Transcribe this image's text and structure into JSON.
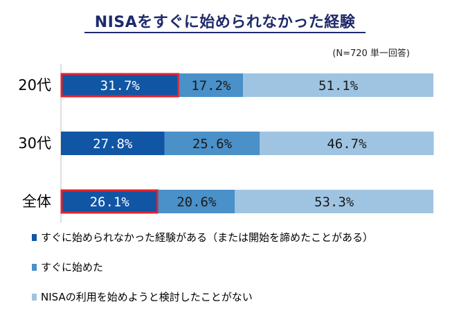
{
  "title": "NISAをすぐに始められなかった経験",
  "note": "(N=720 単一回答)",
  "colors": {
    "series1": "#1155a5",
    "series2": "#4a90c9",
    "series3": "#9fc4e2",
    "highlight": "#e8202a",
    "title": "#1f2a6b"
  },
  "chart_data": {
    "type": "bar",
    "orientation": "horizontal",
    "stacked": true,
    "categories": [
      "20代",
      "30代",
      "全体"
    ],
    "series": [
      {
        "name": "すぐに始められなかった経験がある（または開始を諦めたことがある）",
        "values": [
          31.7,
          27.8,
          26.1
        ],
        "labels": [
          "31.7%",
          "27.8%",
          "26.1%"
        ]
      },
      {
        "name": "すぐに始めた",
        "values": [
          17.2,
          25.6,
          20.6
        ],
        "labels": [
          "17.2%",
          "25.6%",
          "20.6%"
        ]
      },
      {
        "name": "NISAの利用を始めようと検討したことがない",
        "values": [
          51.1,
          46.7,
          53.3
        ],
        "labels": [
          "51.1%",
          "46.7%",
          "53.3%"
        ]
      }
    ],
    "highlighted": [
      [
        0,
        0
      ],
      [
        2,
        0
      ]
    ],
    "xlim": [
      0,
      100
    ],
    "legend_position": "bottom-left"
  }
}
